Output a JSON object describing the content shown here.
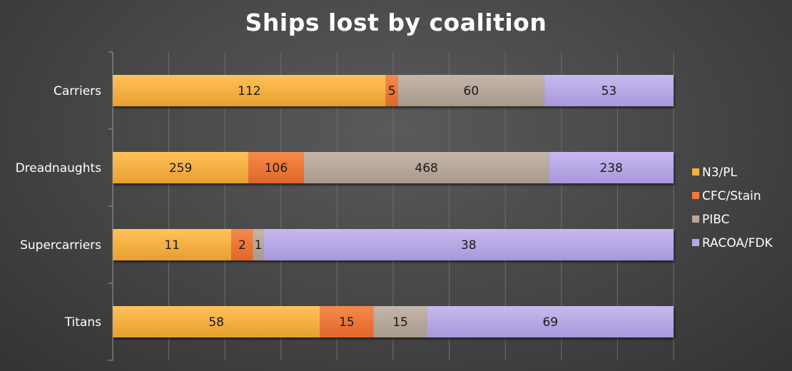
{
  "chart_data": {
    "type": "bar",
    "orientation": "horizontal",
    "stacked": true,
    "title": "Ships lost by coalition",
    "categories": [
      "Carriers",
      "Dreadnaughts",
      "Supercarriers",
      "Titans"
    ],
    "series": [
      {
        "name": "N3/PL",
        "values": [
          112,
          259,
          11,
          58
        ],
        "color": "#F5B044"
      },
      {
        "name": "CFC/Stain",
        "values": [
          5,
          106,
          2,
          15
        ],
        "color": "#EF7A3C"
      },
      {
        "name": "PIBC",
        "values": [
          60,
          468,
          1,
          15
        ],
        "color": "#B5A79B"
      },
      {
        "name": "RACOA/FDK",
        "values": [
          53,
          238,
          38,
          69
        ],
        "color": "#B8A7E6"
      }
    ],
    "normalized": true,
    "xlim": [
      0,
      1
    ],
    "grid": true,
    "legend_position": "right"
  }
}
